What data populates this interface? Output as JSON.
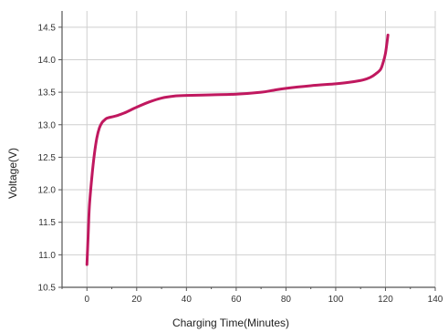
{
  "chart_data": {
    "type": "line",
    "xlabel": "Charging Time(Minutes)",
    "ylabel": "Voltage(V)",
    "xlim": [
      -10,
      140
    ],
    "ylim": [
      10.5,
      14.75
    ],
    "xticks": [
      0,
      20,
      40,
      60,
      80,
      100,
      120,
      140
    ],
    "yticks": [
      10.5,
      11.0,
      11.5,
      12.0,
      12.5,
      13.0,
      13.5,
      14.0,
      14.5
    ],
    "xtick_labels": [
      "0",
      "20",
      "40",
      "60",
      "80",
      "100",
      "120",
      "140"
    ],
    "ytick_labels": [
      "10.5",
      "11.0",
      "11.5",
      "12.0",
      "12.5",
      "13.0",
      "13.5",
      "14.0",
      "14.5"
    ],
    "grid": true,
    "series": [
      {
        "color": "#c0185f",
        "x": [
          0,
          0.5,
          1,
          2,
          3,
          4,
          5,
          6,
          7,
          8,
          10,
          12,
          15,
          20,
          25,
          30,
          35,
          40,
          50,
          60,
          70,
          75,
          80,
          90,
          100,
          105,
          110,
          112,
          114,
          116,
          118,
          119,
          120,
          121
        ],
        "y": [
          10.85,
          11.3,
          11.75,
          12.2,
          12.55,
          12.8,
          12.95,
          13.03,
          13.07,
          13.1,
          13.12,
          13.14,
          13.18,
          13.27,
          13.35,
          13.41,
          13.44,
          13.45,
          13.46,
          13.47,
          13.5,
          13.53,
          13.56,
          13.6,
          13.63,
          13.65,
          13.68,
          13.7,
          13.73,
          13.78,
          13.85,
          13.95,
          14.1,
          14.38
        ]
      }
    ]
  }
}
